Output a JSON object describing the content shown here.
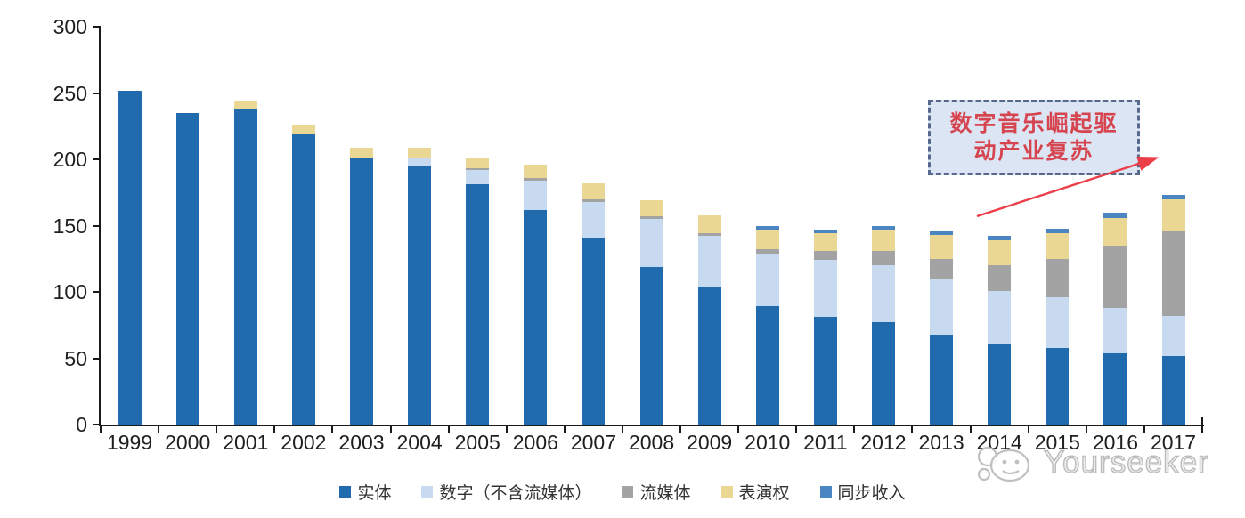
{
  "chart_data": {
    "type": "bar",
    "stacked": true,
    "categories": [
      "1999",
      "2000",
      "2001",
      "2002",
      "2003",
      "2004",
      "2005",
      "2006",
      "2007",
      "2008",
      "2009",
      "2010",
      "2011",
      "2012",
      "2013",
      "2014",
      "2015",
      "2016",
      "2017"
    ],
    "series": [
      {
        "key": "physical",
        "name": "实体",
        "color": "#1F6BAD",
        "values": [
          252,
          235,
          238,
          219,
          201,
          195,
          181,
          162,
          141,
          119,
          104,
          89,
          81,
          77,
          68,
          61,
          58,
          54,
          52
        ]
      },
      {
        "key": "digital",
        "name": "数字（不含流媒体）",
        "color": "#C7DAEF",
        "values": [
          0,
          0,
          0,
          0,
          0,
          6,
          11,
          22,
          27,
          36,
          38,
          40,
          43,
          43,
          42,
          40,
          38,
          34,
          30
        ]
      },
      {
        "key": "streaming",
        "name": "流媒体",
        "color": "#A3A3A3",
        "values": [
          0,
          0,
          0,
          0,
          0,
          0,
          1,
          2,
          2,
          2,
          2,
          3,
          7,
          11,
          15,
          19,
          29,
          47,
          64
        ]
      },
      {
        "key": "performance",
        "name": "表演权",
        "color": "#EAD794",
        "values": [
          0,
          0,
          6,
          7,
          8,
          8,
          8,
          10,
          12,
          12,
          14,
          15,
          13,
          16,
          18,
          19,
          19,
          21,
          24
        ]
      },
      {
        "key": "sync",
        "name": "同步收入",
        "color": "#4C86C2",
        "values": [
          0,
          0,
          0,
          0,
          0,
          0,
          0,
          0,
          0,
          0,
          0,
          3,
          3,
          3,
          3,
          3,
          4,
          4,
          3
        ]
      }
    ],
    "ylim": [
      0,
      300
    ],
    "yticks": [
      0,
      50,
      100,
      150,
      200,
      250,
      300
    ],
    "grid": false,
    "legend_position": "bottom"
  },
  "annotation": {
    "line1": "数字音乐崛起驱",
    "line2": "动产业复苏",
    "box_fill": "#DCE5F3",
    "box_border": "#56688C",
    "text_color": "#D6454F",
    "arrow_color": "#EC3E48"
  },
  "watermark": {
    "text": "Yourseeker"
  }
}
